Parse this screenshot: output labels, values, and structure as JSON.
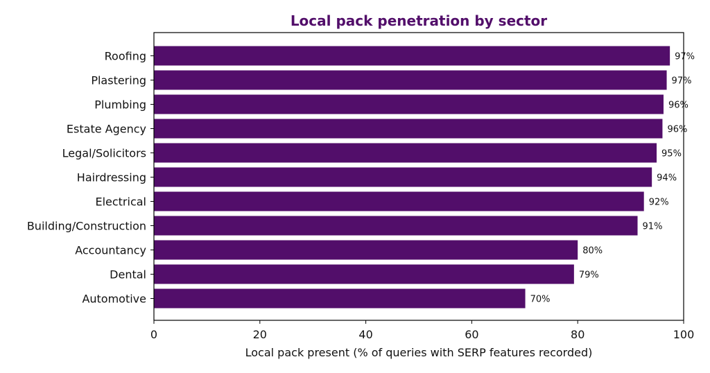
{
  "chart_data": {
    "type": "bar",
    "orientation": "horizontal",
    "title": "Local pack penetration by sector",
    "xlabel": "Local pack present (% of queries with SERP features recorded)",
    "ylabel": "",
    "xlim": [
      0,
      100
    ],
    "xticks": [
      "0",
      "20",
      "40",
      "60",
      "80",
      "100"
    ],
    "grid": false,
    "categories": [
      "Roofing",
      "Plastering",
      "Plumbing",
      "Estate Agency",
      "Legal/Solicitors",
      "Hairdressing",
      "Electrical",
      "Building/Construction",
      "Accountancy",
      "Dental",
      "Automotive"
    ],
    "values": [
      97.4,
      96.8,
      96.2,
      96.0,
      94.9,
      94.0,
      92.5,
      91.3,
      80.0,
      79.3,
      70.1
    ],
    "data_labels": [
      "97%",
      "97%",
      "96%",
      "96%",
      "95%",
      "94%",
      "92%",
      "91%",
      "80%",
      "79%",
      "70%"
    ],
    "bar_color": "#520e6a",
    "title_color": "#520e6a"
  }
}
